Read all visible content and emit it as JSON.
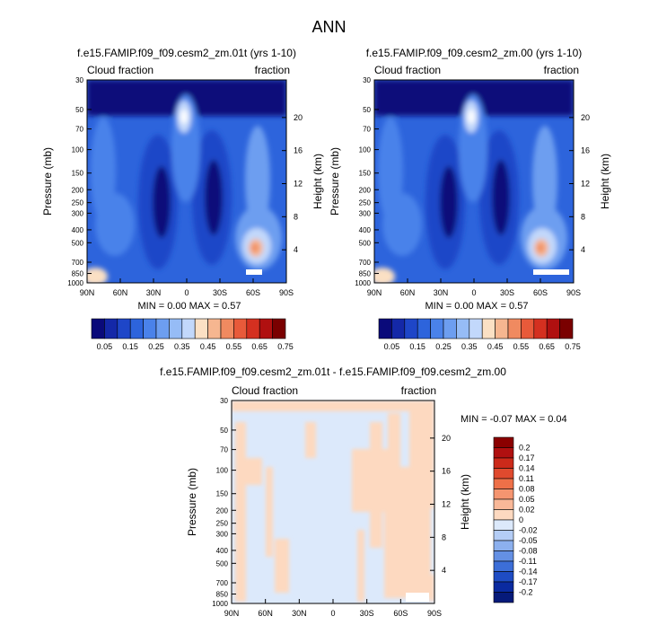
{
  "page_title": "ANN",
  "chart_data": [
    {
      "type": "heatmap",
      "title": "f.e15.FAMIP.f09_f09.cesm2_zm.01t (yrs 1-10)",
      "left_label": "Cloud fraction",
      "right_label": "fraction",
      "ylabel": "Pressure (mb)",
      "ylabel_right": "Height (km)",
      "x_ticks": [
        "90N",
        "60N",
        "30N",
        "0",
        "30S",
        "60S",
        "90S"
      ],
      "y_ticks": [
        "30",
        "50",
        "70",
        "100",
        "150",
        "200",
        "250",
        "300",
        "400",
        "500",
        "700",
        "850",
        "1000"
      ],
      "y_right_ticks": [
        "20",
        "16",
        "12",
        "8",
        "4"
      ],
      "stats": "MIN =   0.00  MAX =   0.57",
      "min": 0.0,
      "max": 0.57,
      "colorbar": {
        "orientation": "horizontal",
        "labels": [
          "0.05",
          "0.15",
          "0.25",
          "0.35",
          "0.45",
          "0.55",
          "0.65",
          "0.75"
        ],
        "colors": [
          "#0a0a7a",
          "#1428a8",
          "#1e46c8",
          "#2d64dc",
          "#4a82ea",
          "#6d9ef0",
          "#96bcf6",
          "#c2d8fb",
          "#fbe0c4",
          "#f6b690",
          "#f08a60",
          "#e85a3a",
          "#d43020",
          "#b01010",
          "#7a0000"
        ]
      }
    },
    {
      "type": "heatmap",
      "title": "f.e15.FAMIP.f09_f09.cesm2_zm.00 (yrs 1-10)",
      "left_label": "Cloud fraction",
      "right_label": "fraction",
      "ylabel": "Pressure (mb)",
      "ylabel_right": "Height (km)",
      "x_ticks": [
        "90N",
        "60N",
        "30N",
        "0",
        "30S",
        "60S",
        "90S"
      ],
      "y_ticks": [
        "30",
        "50",
        "70",
        "100",
        "150",
        "200",
        "250",
        "300",
        "400",
        "500",
        "700",
        "850",
        "1000"
      ],
      "y_right_ticks": [
        "20",
        "16",
        "12",
        "8",
        "4"
      ],
      "stats": "MIN =   0.00  MAX =   0.57",
      "min": 0.0,
      "max": 0.57,
      "colorbar": {
        "orientation": "horizontal",
        "labels": [
          "0.05",
          "0.15",
          "0.25",
          "0.35",
          "0.45",
          "0.55",
          "0.65",
          "0.75"
        ],
        "colors": [
          "#0a0a7a",
          "#1428a8",
          "#1e46c8",
          "#2d64dc",
          "#4a82ea",
          "#6d9ef0",
          "#96bcf6",
          "#c2d8fb",
          "#fbe0c4",
          "#f6b690",
          "#f08a60",
          "#e85a3a",
          "#d43020",
          "#b01010",
          "#7a0000"
        ]
      }
    },
    {
      "type": "heatmap",
      "title": "f.e15.FAMIP.f09_f09.cesm2_zm.01t - f.e15.FAMIP.f09_f09.cesm2_zm.00",
      "left_label": "Cloud fraction",
      "right_label": "fraction",
      "ylabel": "Pressure (mb)",
      "ylabel_right": "Height (km)",
      "x_ticks": [
        "90N",
        "60N",
        "30N",
        "0",
        "30S",
        "60S",
        "90S"
      ],
      "y_ticks": [
        "30",
        "50",
        "70",
        "100",
        "150",
        "200",
        "250",
        "300",
        "400",
        "500",
        "700",
        "850",
        "1000"
      ],
      "y_right_ticks": [
        "20",
        "16",
        "12",
        "8",
        "4"
      ],
      "stats": "MIN =  -0.07  MAX =   0.04",
      "min": -0.07,
      "max": 0.04,
      "colorbar": {
        "orientation": "vertical",
        "labels": [
          "0.2",
          "0.17",
          "0.14",
          "0.11",
          "0.08",
          "0.05",
          "0.02",
          "0",
          "-0.02",
          "-0.05",
          "-0.08",
          "-0.11",
          "-0.14",
          "-0.17",
          "-0.2"
        ],
        "colors": [
          "#8b0000",
          "#b01010",
          "#cc2a1a",
          "#e04a2e",
          "#ee7048",
          "#f59570",
          "#f9b898",
          "#fdd9c0",
          "#dce9fb",
          "#b4cdf6",
          "#8cb0ee",
          "#6490e4",
          "#3c6ed8",
          "#1e4cc4",
          "#0a2aa0",
          "#061a7a"
        ]
      }
    }
  ]
}
